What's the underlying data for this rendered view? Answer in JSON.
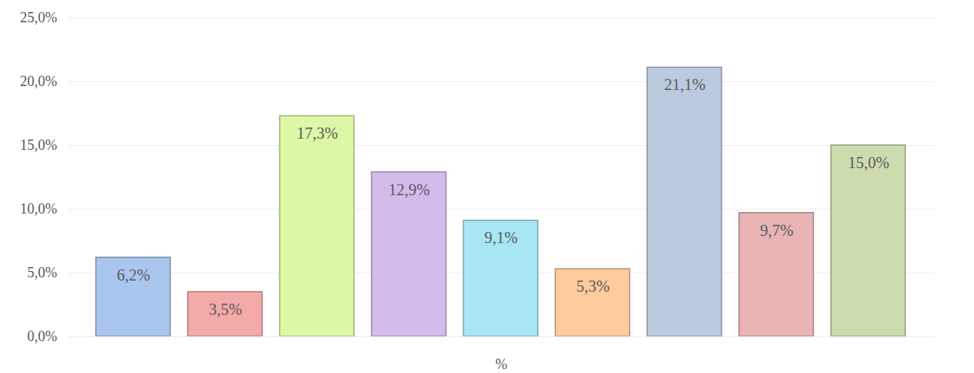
{
  "chart_data": {
    "type": "bar",
    "x_label": "%",
    "categories": [
      null,
      null,
      null,
      null,
      null,
      null,
      null,
      null,
      null
    ],
    "values": [
      6.2,
      3.5,
      17.3,
      12.9,
      9.1,
      5.3,
      21.1,
      9.7,
      15.0
    ],
    "value_labels": [
      "6,2%",
      "3,5%",
      "17,3%",
      "12,9%",
      "9,1%",
      "5,3%",
      "21,1%",
      "9,7%",
      "15,0%"
    ],
    "colors": [
      "#aac6ee",
      "#f5aaaa",
      "#dcf7a6",
      "#d2bcec",
      "#a8e6f4",
      "#fdcb9c",
      "#bccadf",
      "#e8b4b6",
      "#ccdcae"
    ],
    "ylim": [
      0,
      25
    ],
    "yticks": [
      {
        "value": 0,
        "label": "0,0%"
      },
      {
        "value": 5,
        "label": "5,0%"
      },
      {
        "value": 10,
        "label": "10,0%"
      },
      {
        "value": 15,
        "label": "15,0%"
      },
      {
        "value": 20,
        "label": "20,0%"
      },
      {
        "value": 25,
        "label": "25,0%"
      }
    ],
    "grid": true,
    "data_labels": true
  }
}
